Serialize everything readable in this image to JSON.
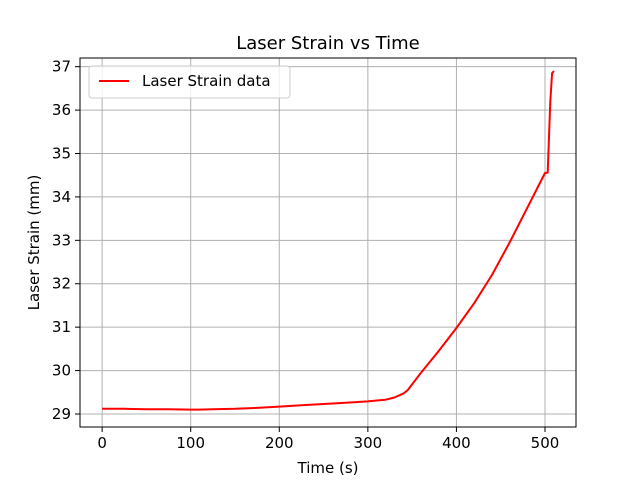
{
  "chart_data": {
    "type": "line",
    "title": "Laser Strain vs Time",
    "xlabel": "Time (s)",
    "ylabel": "Laser Strain (mm)",
    "xlim": [
      -25,
      535
    ],
    "ylim": [
      28.7,
      37.2
    ],
    "xticks": [
      0,
      100,
      200,
      300,
      400,
      500
    ],
    "yticks": [
      29,
      30,
      31,
      32,
      33,
      34,
      35,
      36,
      37
    ],
    "grid": true,
    "legend": "top-left",
    "colors": {
      "series": "#ff0000",
      "grid": "#b0b0b0"
    },
    "series": [
      {
        "name": "Laser Strain data",
        "x": [
          0,
          25,
          50,
          75,
          100,
          110,
          125,
          150,
          175,
          200,
          225,
          250,
          275,
          300,
          320,
          330,
          340,
          345,
          360,
          380,
          400,
          420,
          440,
          460,
          480,
          500,
          503,
          506,
          508,
          510
        ],
        "y": [
          29.12,
          29.12,
          29.11,
          29.11,
          29.1,
          29.1,
          29.11,
          29.12,
          29.14,
          29.17,
          29.2,
          29.23,
          29.26,
          29.29,
          29.33,
          29.38,
          29.47,
          29.55,
          29.95,
          30.45,
          30.98,
          31.55,
          32.2,
          32.95,
          33.75,
          34.55,
          34.56,
          36.2,
          36.85,
          36.9
        ]
      }
    ]
  }
}
